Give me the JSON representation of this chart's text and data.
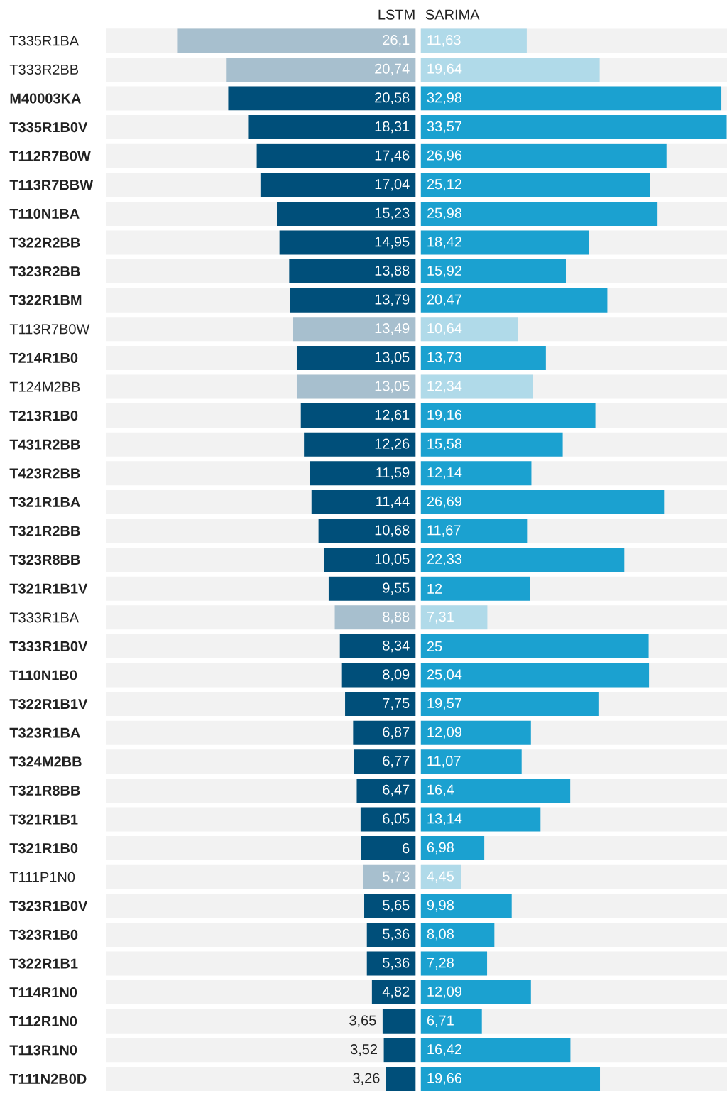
{
  "chart_data": [
    {
      "type": "bar",
      "orientation": "horizontal",
      "title": "LSTM",
      "categories": [
        "T335R1BA",
        "T333R2BB",
        "**M40003KA**",
        "**T335R1B0V**",
        "**T112R7B0W**",
        "**T113R7BBW**",
        "**T110N1BA**",
        "**T322R2BB**",
        "**T323R2BB**",
        "**T322R1BM**",
        "T113R7B0W",
        "**T214R1B0**",
        "T124M2BB",
        "**T213R1B0**",
        "**T431R2BB**",
        "**T423R2BB**",
        "**T321R1BA**",
        "**T321R2BB**",
        "**T323R8BB**",
        "**T321R1B1V**",
        "T333R1BA",
        "**T333R1B0V**",
        "**T110N1B0**",
        "**T322R1B1V**",
        "**T323R1BA**",
        "**T324M2BB**",
        "**T321R8BB**",
        "**T321R1B1**",
        "**T321R1B0**",
        "T111P1N0",
        "**T323R1B0V**",
        "**T323R1B0**",
        "**T322R1B1**",
        "**T114R1N0**",
        "**T112R1N0**",
        "**T113R1N0**",
        "**T111N2B0D**"
      ],
      "values": [
        26.1,
        20.74,
        20.58,
        18.31,
        17.46,
        17.04,
        15.23,
        14.95,
        13.88,
        13.79,
        13.49,
        13.05,
        13.05,
        12.61,
        12.26,
        11.59,
        11.44,
        10.68,
        10.05,
        9.55,
        8.88,
        8.34,
        8.09,
        7.75,
        6.87,
        6.77,
        6.47,
        6.05,
        6,
        5.73,
        5.65,
        5.36,
        5.36,
        4.82,
        3.65,
        3.52,
        3.26
      ],
      "value_labels": [
        "26,1",
        "20,74",
        "20,58",
        "18,31",
        "17,46",
        "17,04",
        "15,23",
        "14,95",
        "13,88",
        "13,79",
        "13,49",
        "13,05",
        "13,05",
        "12,61",
        "12,26",
        "11,59",
        "11,44",
        "10,68",
        "10,05",
        "9,55",
        "8,88",
        "8,34",
        "8,09",
        "7,75",
        "6,87",
        "6,77",
        "6,47",
        "6,05",
        "6",
        "5,73",
        "5,65",
        "5,36",
        "5,36",
        "4,82",
        "3,65",
        "3,52",
        "3,26"
      ],
      "colors": [
        "#a7bfce",
        "#a7bfce",
        "#004f7a",
        "#004f7a",
        "#004f7a",
        "#004f7a",
        "#004f7a",
        "#004f7a",
        "#004f7a",
        "#004f7a",
        "#a7bfce",
        "#004f7a",
        "#a7bfce",
        "#004f7a",
        "#004f7a",
        "#004f7a",
        "#004f7a",
        "#004f7a",
        "#004f7a",
        "#004f7a",
        "#a7bfce",
        "#004f7a",
        "#004f7a",
        "#004f7a",
        "#004f7a",
        "#004f7a",
        "#004f7a",
        "#004f7a",
        "#004f7a",
        "#a7bfce",
        "#004f7a",
        "#004f7a",
        "#004f7a",
        "#004f7a",
        "#004f7a",
        "#004f7a",
        "#004f7a"
      ],
      "xlim": [
        34,
        0
      ],
      "grid": "y",
      "tick_labels": "y"
    },
    {
      "type": "bar",
      "orientation": "horizontal",
      "title": "SARIMA",
      "categories": [
        null,
        null,
        null,
        null,
        null,
        null,
        null,
        null,
        null,
        null,
        null,
        null,
        null,
        null,
        null,
        null,
        null,
        null,
        null,
        null,
        null,
        null,
        null,
        null,
        null,
        null,
        null,
        null,
        null,
        null,
        null,
        null,
        null,
        null,
        null,
        null,
        null
      ],
      "values": [
        11.63,
        19.64,
        32.98,
        33.57,
        26.96,
        25.12,
        25.98,
        18.42,
        15.92,
        20.47,
        10.64,
        13.73,
        12.34,
        19.16,
        15.58,
        12.14,
        26.69,
        11.67,
        22.33,
        12,
        7.31,
        25,
        25.04,
        19.57,
        12.09,
        11.07,
        16.4,
        13.14,
        6.98,
        4.45,
        9.98,
        8.08,
        7.28,
        12.09,
        6.71,
        16.42,
        19.66
      ],
      "value_labels": [
        "11,63",
        "19,64",
        "32,98",
        "33,57",
        "26,96",
        "25,12",
        "25,98",
        "18,42",
        "15,92",
        "20,47",
        "10,64",
        "13,73",
        "12,34",
        "19,16",
        "15,58",
        "12,14",
        "26,69",
        "11,67",
        "22,33",
        "12",
        "7,31",
        "25",
        "25,04",
        "19,57",
        "12,09",
        "11,07",
        "16,4",
        "13,14",
        "6,98",
        "4,45",
        "9,98",
        "8,08",
        "7,28",
        "12,09",
        "6,71",
        "16,42",
        "19,66"
      ],
      "colors": [
        "#b0dae9",
        "#b0dae9",
        "#1ba1d0",
        "#1ba1d0",
        "#1ba1d0",
        "#1ba1d0",
        "#1ba1d0",
        "#1ba1d0",
        "#1ba1d0",
        "#1ba1d0",
        "#b0dae9",
        "#1ba1d0",
        "#b0dae9",
        "#1ba1d0",
        "#1ba1d0",
        "#1ba1d0",
        "#1ba1d0",
        "#1ba1d0",
        "#1ba1d0",
        "#1ba1d0",
        "#b0dae9",
        "#1ba1d0",
        "#1ba1d0",
        "#1ba1d0",
        "#1ba1d0",
        "#1ba1d0",
        "#1ba1d0",
        "#1ba1d0",
        "#1ba1d0",
        "#b0dae9",
        "#1ba1d0",
        "#1ba1d0",
        "#1ba1d0",
        "#1ba1d0",
        "#1ba1d0",
        "#1ba1d0",
        "#1ba1d0"
      ],
      "xlim": [
        0,
        33.6
      ],
      "grid": "y",
      "tick_labels": false
    }
  ]
}
